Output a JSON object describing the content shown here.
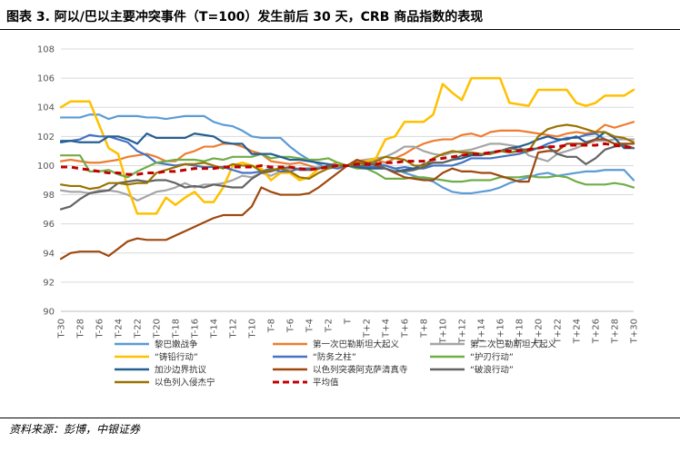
{
  "title": "图表 3. 阿以/巴以主要冲突事件（T=100）发生前后 30 天，CRB 商品指数的表现",
  "source": "资料来源：彭博，中银证券",
  "chart_data": {
    "type": "line",
    "title": "图表 3. 阿以/巴以主要冲突事件（T=100）发生前后 30 天，CRB 商品指数的表现",
    "xlabel": "",
    "ylabel": "",
    "ylim": [
      90,
      108
    ],
    "yticks": [
      90,
      92,
      94,
      96,
      98,
      100,
      102,
      104,
      106,
      108
    ],
    "grid": true,
    "legend_position": "bottom",
    "categories": [
      "T-30",
      "T-29",
      "T-28",
      "T-27",
      "T-26",
      "T-25",
      "T-24",
      "T-23",
      "T-22",
      "T-21",
      "T-20",
      "T-19",
      "T-18",
      "T-17",
      "T-16",
      "T-15",
      "T-14",
      "T-13",
      "T-12",
      "T-11",
      "T-10",
      "T-9",
      "T-8",
      "T-7",
      "T-6",
      "T-5",
      "T-4",
      "T-3",
      "T-2",
      "T-1",
      "T",
      "T+1",
      "T+2",
      "T+3",
      "T+4",
      "T+5",
      "T+6",
      "T+7",
      "T+8",
      "T+9",
      "T+10",
      "T+11",
      "T+12",
      "T+13",
      "T+14",
      "T+15",
      "T+16",
      "T+17",
      "T+18",
      "T+19",
      "T+20",
      "T+21",
      "T+22",
      "T+23",
      "T+24",
      "T+25",
      "T+26",
      "T+27",
      "T+28",
      "T+29",
      "T+30"
    ],
    "tick_labels": [
      "T-30",
      "T-28",
      "T-26",
      "T-24",
      "T-22",
      "T-20",
      "T-18",
      "T-16",
      "T-14",
      "T-12",
      "T-10",
      "T-8",
      "T-6",
      "T-4",
      "T-2",
      "T",
      "T+2",
      "T+4",
      "T+6",
      "T+8",
      "T+10",
      "T+12",
      "T+14",
      "T+16",
      "T+18",
      "T+20",
      "T+22",
      "T+24",
      "T+26",
      "T+28",
      "T+30"
    ],
    "series": [
      {
        "name": "黎巴嫩战争",
        "color": "#5B9BD5",
        "width": 2.2,
        "values": [
          103.3,
          103.3,
          103.3,
          103.5,
          103.5,
          103.2,
          103.4,
          103.4,
          103.4,
          103.3,
          103.3,
          103.2,
          103.3,
          103.4,
          103.4,
          103.4,
          103.0,
          102.8,
          102.7,
          102.4,
          102.0,
          101.9,
          101.9,
          101.9,
          101.3,
          100.8,
          100.4,
          100.1,
          99.8,
          99.9,
          100.0,
          100.2,
          100.3,
          100.2,
          100.0,
          99.8,
          99.5,
          99.3,
          99.1,
          98.9,
          98.5,
          98.2,
          98.1,
          98.1,
          98.2,
          98.3,
          98.5,
          98.8,
          99.0,
          99.2,
          99.4,
          99.5,
          99.3,
          99.4,
          99.5,
          99.6,
          99.6,
          99.7,
          99.7,
          99.7,
          99.0
        ]
      },
      {
        "name": "第一次巴勒斯坦大起义",
        "color": "#ED7D31",
        "width": 2.2,
        "values": [
          100.3,
          100.4,
          100.3,
          100.2,
          100.2,
          100.3,
          100.4,
          100.6,
          100.7,
          100.8,
          100.6,
          100.3,
          100.3,
          100.8,
          101.0,
          101.3,
          101.3,
          101.5,
          101.5,
          101.3,
          101.0,
          100.8,
          100.3,
          100.2,
          100.1,
          100.2,
          100.0,
          99.8,
          100.0,
          100.2,
          100.0,
          100.3,
          100.4,
          100.4,
          100.2,
          100.5,
          100.8,
          101.2,
          101.5,
          101.7,
          101.8,
          101.8,
          102.1,
          102.2,
          102.0,
          102.3,
          102.4,
          102.4,
          102.4,
          102.3,
          102.2,
          102.1,
          102.0,
          102.2,
          102.3,
          102.2,
          102.3,
          102.8,
          102.6,
          102.8,
          103.0
        ]
      },
      {
        "name": "第二次巴勒斯坦大起义",
        "color": "#A5A5A5",
        "width": 2.2,
        "values": [
          98.3,
          98.2,
          98.2,
          98.1,
          98.3,
          98.3,
          98.2,
          98.0,
          97.6,
          97.9,
          98.2,
          98.3,
          98.5,
          98.8,
          98.5,
          98.7,
          98.7,
          98.8,
          99.0,
          99.3,
          99.2,
          99.5,
          99.3,
          99.6,
          99.8,
          99.8,
          99.8,
          99.9,
          99.9,
          100.0,
          100.0,
          100.2,
          100.4,
          100.5,
          100.6,
          100.9,
          101.3,
          101.3,
          101.0,
          100.8,
          100.7,
          100.9,
          101.0,
          101.1,
          101.3,
          101.5,
          101.5,
          101.4,
          101.3,
          100.7,
          100.5,
          100.3,
          100.8,
          101.0,
          101.2,
          101.5,
          101.7,
          101.7,
          101.8,
          101.8,
          101.8
        ]
      },
      {
        "name": "“铸铅行动”",
        "color": "#FFC000",
        "width": 2.5,
        "values": [
          104.0,
          104.4,
          104.4,
          104.4,
          102.8,
          101.2,
          100.8,
          98.5,
          96.7,
          96.7,
          96.7,
          97.8,
          97.3,
          97.8,
          98.2,
          97.5,
          97.5,
          98.5,
          100.0,
          100.2,
          100.0,
          99.8,
          99.0,
          99.5,
          99.5,
          99.0,
          99.2,
          99.8,
          100.0,
          99.9,
          100.0,
          100.1,
          100.3,
          100.5,
          101.8,
          102.0,
          103.0,
          103.0,
          103.0,
          103.5,
          105.6,
          105.0,
          104.5,
          106.0,
          106.0,
          106.0,
          106.0,
          104.3,
          104.2,
          104.1,
          105.2,
          105.2,
          105.2,
          105.2,
          104.3,
          104.1,
          104.3,
          104.8,
          104.8,
          104.8,
          105.2
        ]
      },
      {
        "name": "“防务之柱”",
        "color": "#4472C4",
        "width": 2.2,
        "values": [
          101.7,
          101.7,
          101.8,
          102.1,
          102.0,
          102.0,
          101.8,
          101.6,
          101.0,
          100.7,
          100.2,
          100.1,
          100.0,
          100.1,
          100.0,
          99.9,
          99.9,
          99.9,
          99.7,
          99.5,
          99.5,
          99.6,
          99.8,
          99.6,
          99.6,
          99.8,
          99.8,
          99.8,
          99.9,
          99.8,
          100.0,
          100.0,
          99.9,
          99.9,
          100.0,
          99.8,
          99.9,
          99.8,
          99.8,
          100.0,
          100.0,
          100.0,
          100.2,
          100.5,
          100.5,
          100.5,
          100.6,
          100.7,
          100.8,
          101.0,
          101.2,
          101.5,
          101.7,
          101.9,
          101.9,
          102.1,
          102.2,
          101.8,
          101.5,
          101.4,
          101.2
        ]
      },
      {
        "name": "“护刃行动”",
        "color": "#70AD47",
        "width": 2.2,
        "values": [
          100.7,
          100.7,
          100.7,
          99.6,
          99.6,
          99.7,
          99.4,
          99.2,
          99.6,
          99.9,
          100.2,
          100.3,
          100.4,
          100.4,
          100.4,
          100.3,
          100.5,
          100.4,
          100.6,
          100.6,
          100.6,
          100.8,
          100.5,
          100.6,
          100.6,
          100.5,
          100.4,
          100.4,
          100.5,
          100.2,
          100.0,
          99.8,
          99.8,
          99.5,
          99.1,
          99.1,
          99.1,
          99.2,
          99.2,
          99.1,
          99.0,
          98.9,
          98.9,
          99.0,
          99.0,
          99.0,
          99.2,
          99.2,
          99.2,
          99.3,
          99.2,
          99.2,
          99.3,
          99.2,
          98.9,
          98.7,
          98.7,
          98.7,
          98.8,
          98.7,
          98.5
        ]
      },
      {
        "name": "加沙边界抗议",
        "color": "#255E91",
        "width": 2.2,
        "values": [
          101.6,
          101.7,
          101.6,
          101.6,
          101.6,
          102.0,
          102.0,
          101.8,
          101.5,
          102.2,
          101.9,
          101.9,
          101.9,
          101.9,
          102.2,
          102.1,
          102.0,
          101.6,
          101.5,
          101.5,
          100.8,
          100.8,
          100.8,
          100.6,
          100.4,
          100.4,
          100.3,
          100.2,
          100.1,
          100.0,
          100.0,
          99.9,
          99.8,
          99.8,
          99.8,
          99.6,
          99.7,
          99.8,
          100.1,
          100.2,
          100.2,
          100.4,
          100.5,
          100.7,
          100.7,
          100.9,
          101.0,
          101.2,
          101.3,
          101.5,
          101.8,
          102.0,
          101.8,
          101.8,
          102.0,
          101.6,
          101.8,
          102.3,
          101.9,
          101.2,
          101.2
        ]
      },
      {
        "name": "以色列突袭阿克萨清真寺",
        "color": "#9E480E",
        "width": 2.2,
        "values": [
          93.6,
          94.0,
          94.1,
          94.1,
          94.1,
          93.8,
          94.3,
          94.8,
          95.0,
          94.9,
          94.9,
          94.9,
          95.2,
          95.5,
          95.8,
          96.1,
          96.4,
          96.6,
          96.6,
          96.6,
          97.2,
          98.5,
          98.2,
          98.0,
          98.0,
          98.0,
          98.1,
          98.5,
          99.0,
          99.5,
          100.0,
          100.4,
          100.2,
          100.0,
          99.8,
          99.5,
          99.2,
          99.1,
          99.0,
          99.0,
          99.5,
          99.8,
          99.6,
          99.6,
          99.5,
          99.5,
          99.3,
          99.1,
          98.9,
          98.9,
          100.9,
          101.0,
          101.0,
          101.5,
          101.5,
          101.5,
          101.8,
          101.8,
          101.5,
          101.5,
          101.5
        ]
      },
      {
        "name": "“破浪行动”",
        "color": "#636363",
        "width": 2.2,
        "values": [
          97.0,
          97.2,
          97.7,
          98.1,
          98.2,
          98.3,
          98.8,
          98.9,
          99.0,
          98.9,
          99.0,
          99.0,
          98.8,
          98.5,
          98.6,
          98.5,
          98.7,
          98.6,
          98.5,
          98.5,
          99.1,
          99.5,
          99.6,
          99.8,
          99.9,
          99.7,
          99.7,
          99.8,
          100.0,
          100.0,
          100.0,
          100.0,
          100.0,
          100.1,
          99.8,
          99.6,
          99.6,
          99.7,
          99.9,
          100.2,
          100.2,
          100.4,
          100.7,
          100.8,
          100.8,
          100.8,
          101.0,
          101.2,
          101.1,
          101.1,
          101.2,
          101.3,
          100.8,
          100.6,
          100.6,
          100.1,
          100.5,
          101.1,
          101.3,
          101.4,
          101.2
        ]
      },
      {
        "name": "以色列入侵杰宁",
        "color": "#997300",
        "width": 2.2,
        "values": [
          98.7,
          98.6,
          98.6,
          98.4,
          98.5,
          98.8,
          98.8,
          98.7,
          98.8,
          98.8,
          99.5,
          99.7,
          99.9,
          100.1,
          100.1,
          100.2,
          100.0,
          99.8,
          100.1,
          100.0,
          100.0,
          99.6,
          99.7,
          99.8,
          99.6,
          99.2,
          99.1,
          99.5,
          99.8,
          100.0,
          100.0,
          100.2,
          100.1,
          100.3,
          100.6,
          100.5,
          100.4,
          100.0,
          100.0,
          100.5,
          100.8,
          101.0,
          100.9,
          100.9,
          100.8,
          100.8,
          101.0,
          100.9,
          101.0,
          101.0,
          102.0,
          102.5,
          102.7,
          102.8,
          102.7,
          102.5,
          102.3,
          102.3,
          102.0,
          101.9,
          101.6
        ]
      },
      {
        "name": "平均值",
        "color": "#C00000",
        "width": 3,
        "dash": "7,5",
        "values": [
          99.9,
          99.9,
          99.8,
          99.7,
          99.6,
          99.5,
          99.5,
          99.4,
          99.4,
          99.5,
          99.5,
          99.6,
          99.6,
          99.7,
          99.8,
          99.8,
          99.8,
          99.9,
          99.9,
          99.9,
          99.9,
          100.0,
          99.9,
          99.9,
          99.9,
          99.8,
          99.7,
          99.8,
          99.9,
          100.0,
          100.0,
          100.1,
          100.1,
          100.1,
          100.2,
          100.2,
          100.3,
          100.3,
          100.3,
          100.4,
          100.5,
          100.6,
          100.7,
          100.8,
          100.8,
          100.9,
          101.0,
          101.0,
          101.0,
          101.1,
          101.2,
          101.3,
          101.3,
          101.4,
          101.4,
          101.4,
          101.4,
          101.5,
          101.4,
          101.3,
          101.2
        ]
      }
    ]
  }
}
